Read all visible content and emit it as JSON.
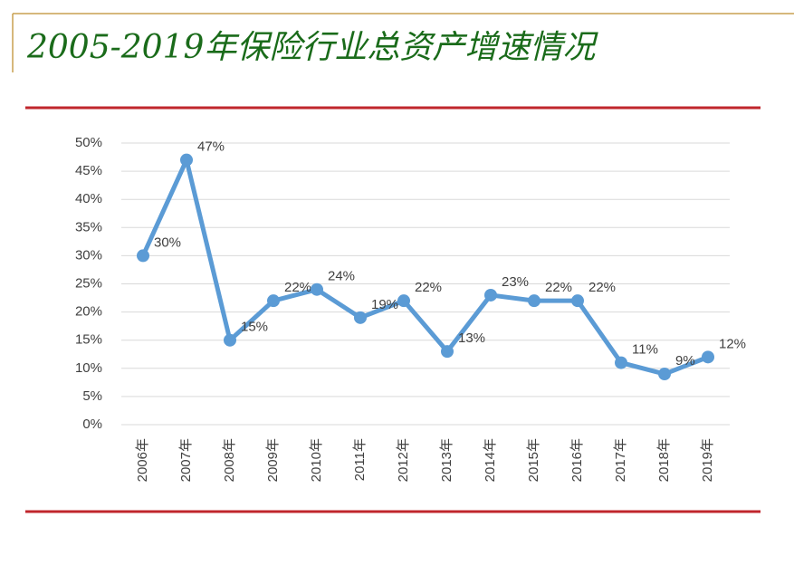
{
  "chart_data": {
    "type": "line",
    "title": "2005-2019年保险行业总资产增速情况",
    "categories": [
      "2006年",
      "2007年",
      "2008年",
      "2009年",
      "2010年",
      "2011年",
      "2012年",
      "2013年",
      "2014年",
      "2015年",
      "2016年",
      "2017年",
      "2018年",
      "2019年"
    ],
    "series": [
      {
        "color": "#5b9bd5",
        "values": [
          30,
          47,
          15,
          22,
          24,
          19,
          22,
          13,
          23,
          22,
          22,
          11,
          9,
          12
        ],
        "value_labels": [
          "30%",
          "47%",
          "15%",
          "22%",
          "24%",
          "19%",
          "22%",
          "13%",
          "23%",
          "22%",
          "22%",
          "11%",
          "9%",
          "12%"
        ]
      }
    ],
    "ylim": [
      0,
      50
    ],
    "yticks": [
      {
        "value": 0,
        "label": "0%"
      },
      {
        "value": 5,
        "label": "5%"
      },
      {
        "value": 10,
        "label": "10%"
      },
      {
        "value": 15,
        "label": "15%"
      },
      {
        "value": 20,
        "label": "20%"
      },
      {
        "value": 25,
        "label": "25%"
      },
      {
        "value": 30,
        "label": "30%"
      },
      {
        "value": 35,
        "label": "35%"
      },
      {
        "value": 40,
        "label": "40%"
      },
      {
        "value": 45,
        "label": "45%"
      },
      {
        "value": 50,
        "label": "50%"
      }
    ],
    "grid": true
  }
}
